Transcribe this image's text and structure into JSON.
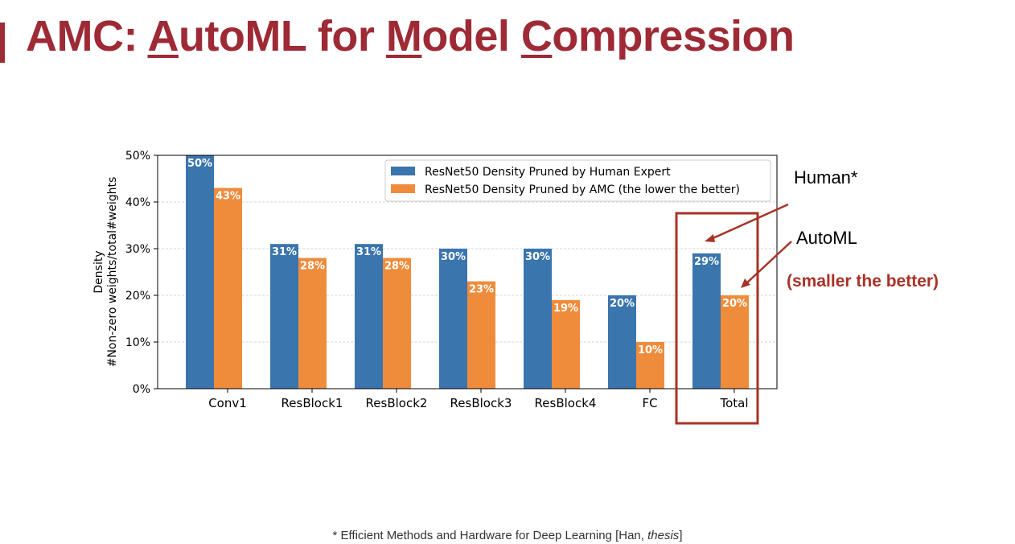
{
  "slide": {
    "title": {
      "part1": "AMC: ",
      "u1": "A",
      "part2": "utoML for ",
      "u2": "M",
      "part3": "odel ",
      "u3": "C",
      "part4": "ompression"
    },
    "annotations": {
      "human": "Human*",
      "automl": "AutoML",
      "note": "(smaller the better)"
    },
    "footnote": {
      "prefix": "* Efficient Methods and Hardware for Deep Learning [Han, ",
      "italic": "thesis",
      "suffix": "]"
    },
    "colors": {
      "title": "#9d2a35",
      "highlight": "#a93226"
    }
  },
  "chart_data": {
    "type": "bar",
    "categories": [
      "Conv1",
      "ResBlock1",
      "ResBlock2",
      "ResBlock3",
      "ResBlock4",
      "FC",
      "Total"
    ],
    "series": [
      {
        "name": "ResNet50 Density Pruned by Human Expert",
        "values": [
          50,
          31,
          31,
          30,
          30,
          20,
          29
        ],
        "color": "#3a75ad"
      },
      {
        "name": "ResNet50 Density Pruned by AMC (the lower the better)",
        "values": [
          43,
          28,
          28,
          23,
          19,
          10,
          20
        ],
        "color": "#ef8c3c"
      }
    ],
    "data_labels": [
      [
        "50%",
        "31%",
        "31%",
        "30%",
        "30%",
        "20%",
        "29%"
      ],
      [
        "43%",
        "28%",
        "28%",
        "23%",
        "19%",
        "10%",
        "20%"
      ]
    ],
    "ylabel": [
      "Density",
      "#Non-zero weights/total#weights"
    ],
    "xlabel": "",
    "ylim": [
      0,
      50
    ],
    "yticks": [
      0,
      10,
      20,
      30,
      40,
      50
    ],
    "ytick_labels": [
      "0%",
      "10%",
      "20%",
      "30%",
      "40%",
      "50%"
    ],
    "grid": "horizontal dashed",
    "legend": "top-right",
    "highlight_category": "Total"
  }
}
